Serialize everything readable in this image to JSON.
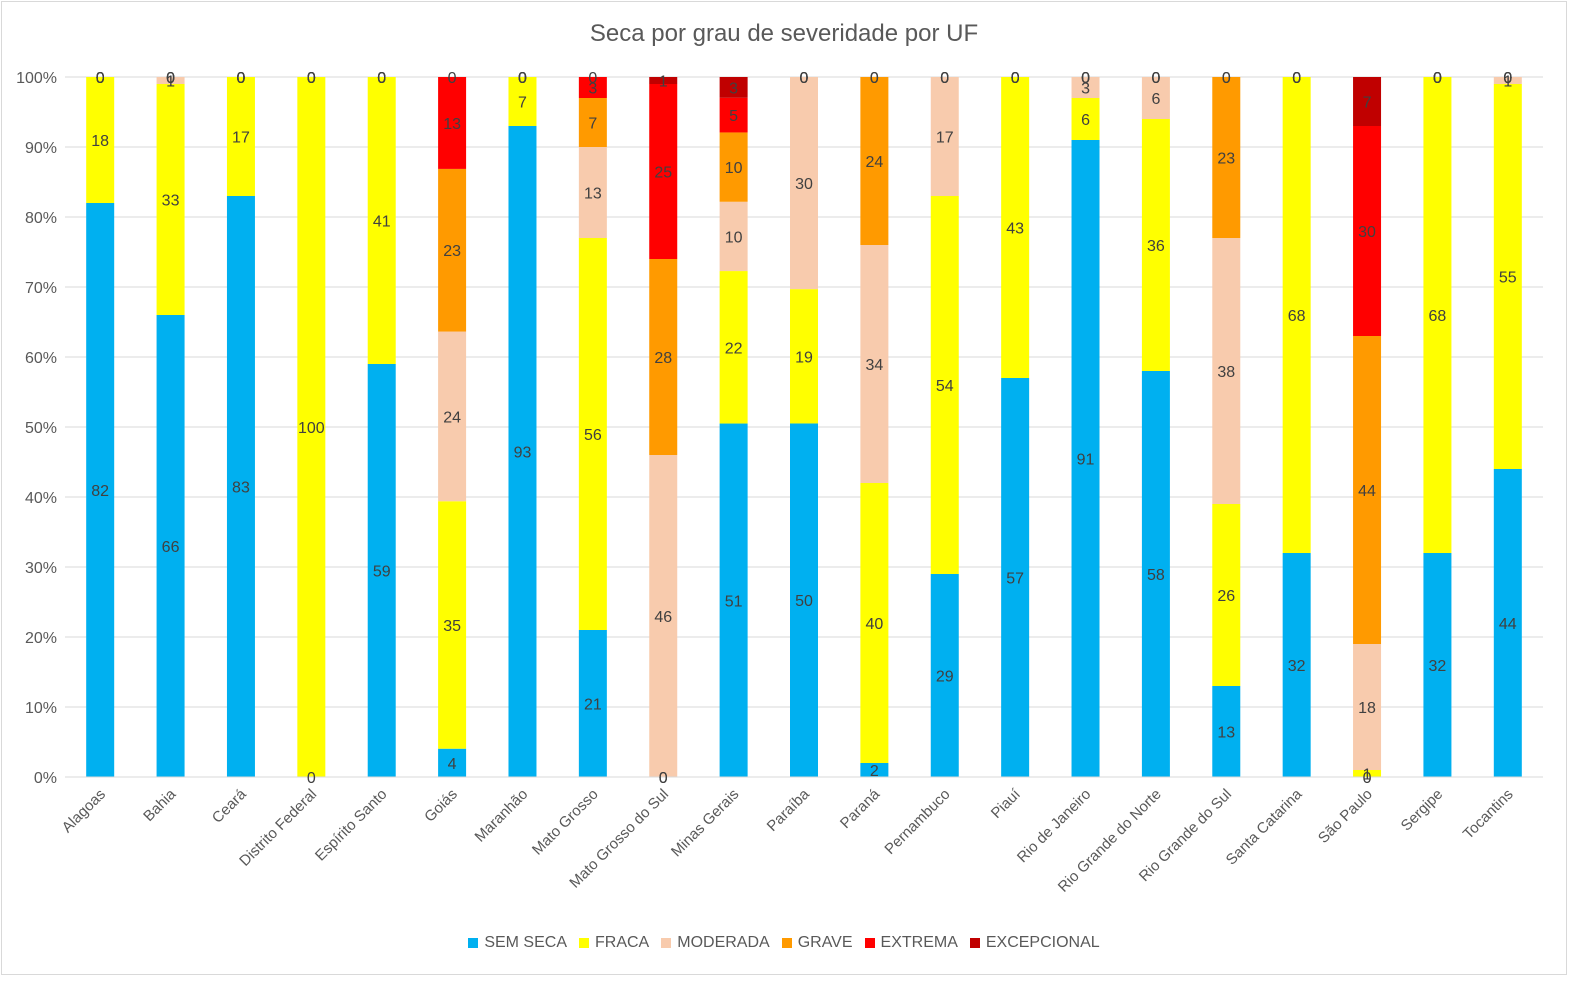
{
  "chart_data": {
    "type": "bar",
    "stacked": "percent",
    "title": "Seca por grau de severidade por UF",
    "xlabel": "",
    "ylabel": "",
    "ylim": [
      0,
      100
    ],
    "yticks": [
      "0%",
      "10%",
      "20%",
      "30%",
      "40%",
      "50%",
      "60%",
      "70%",
      "80%",
      "90%",
      "100%"
    ],
    "legend_position": "bottom",
    "grid": true,
    "categories": [
      "Alagoas",
      "Bahia",
      "Ceará",
      "Distrito Federal",
      "Espírito Santo",
      "Goiás",
      "Maranhão",
      "Mato Grosso",
      "Mato Grosso do Sul",
      "Minas Gerais",
      "Paraíba",
      "Paraná",
      "Pernambuco",
      "Piauí",
      "Rio de Janeiro",
      "Rio Grande do Norte",
      "Rio Grande do Sul",
      "Santa Catarina",
      "São Paulo",
      "Sergipe",
      "Tocantins"
    ],
    "series": [
      {
        "name": "SEM SECA",
        "color": "#00b0f0",
        "values": [
          82,
          66,
          83,
          0,
          59,
          4,
          93,
          21,
          0,
          51,
          50,
          2,
          29,
          57,
          91,
          58,
          13,
          32,
          0,
          32,
          44
        ],
        "labels": [
          "82",
          "66",
          "83",
          "0",
          "59",
          "4",
          "93",
          "21",
          "0",
          "51",
          "50",
          "2",
          "29",
          "57",
          "91",
          "58",
          "13",
          "32",
          "0",
          "32",
          "44"
        ]
      },
      {
        "name": "FRACA",
        "color": "#ffff00",
        "values": [
          18,
          33,
          17,
          100,
          41,
          35,
          7,
          56,
          0,
          22,
          19,
          40,
          54,
          43,
          6,
          36,
          26,
          68,
          1,
          68,
          55
        ],
        "labels": [
          "18",
          "33",
          "17",
          "100",
          "41",
          "35",
          "7",
          "56",
          "0",
          "22",
          "19",
          "40",
          "54",
          "43",
          "6",
          "36",
          "26",
          "68",
          "1",
          "68",
          "55"
        ]
      },
      {
        "name": "MODERADA",
        "color": "#f8cbad",
        "values": [
          0,
          1,
          0,
          0,
          0,
          24,
          0,
          13,
          46,
          10,
          30,
          34,
          17,
          0,
          3,
          6,
          38,
          0,
          18,
          0,
          1
        ],
        "labels": [
          "0",
          "1",
          "0",
          "0",
          "0",
          "24",
          "0",
          "13",
          "46",
          "10",
          "30",
          "34",
          "17",
          "0",
          "3",
          "6",
          "38",
          "0",
          "18",
          "0",
          "1"
        ]
      },
      {
        "name": "GRAVE",
        "color": "#ff9a00",
        "values": [
          0,
          0,
          0,
          0,
          0,
          23,
          0,
          7,
          28,
          10,
          0,
          24,
          0,
          0,
          0,
          0,
          23,
          0,
          44,
          0,
          0
        ],
        "labels": [
          "0",
          "0",
          "0",
          "0",
          "0",
          "23",
          "0",
          "7",
          "28",
          "10",
          "0",
          "24",
          "0",
          "0",
          "0",
          "0",
          "23",
          "0",
          "44",
          "0",
          "0"
        ]
      },
      {
        "name": "EXTREMA",
        "color": "#ff0000",
        "values": [
          0,
          0,
          0,
          0,
          0,
          13,
          0,
          3,
          25,
          5,
          0,
          0,
          0,
          0,
          0,
          0,
          0,
          0,
          30,
          0,
          0
        ],
        "labels": [
          "0",
          "0",
          "0",
          "0",
          "0",
          "13",
          "0",
          "3",
          "25",
          "5",
          "0",
          "0",
          "0",
          "0",
          "0",
          "0",
          "0",
          "0",
          "30",
          "0",
          "0"
        ]
      },
      {
        "name": "EXCEPCIONAL",
        "color": "#c00000",
        "values": [
          0,
          0,
          0,
          0,
          0,
          0,
          0,
          0,
          1,
          3,
          0,
          0,
          0,
          0,
          0,
          0,
          0,
          0,
          7,
          0,
          0
        ],
        "labels": [
          "0",
          "0",
          "0",
          "0",
          "0",
          "0",
          "0",
          "0",
          "1",
          "3",
          "0",
          "0",
          "0",
          "0",
          "0",
          "0",
          "0",
          "0",
          "7",
          "0",
          "0"
        ]
      }
    ]
  }
}
